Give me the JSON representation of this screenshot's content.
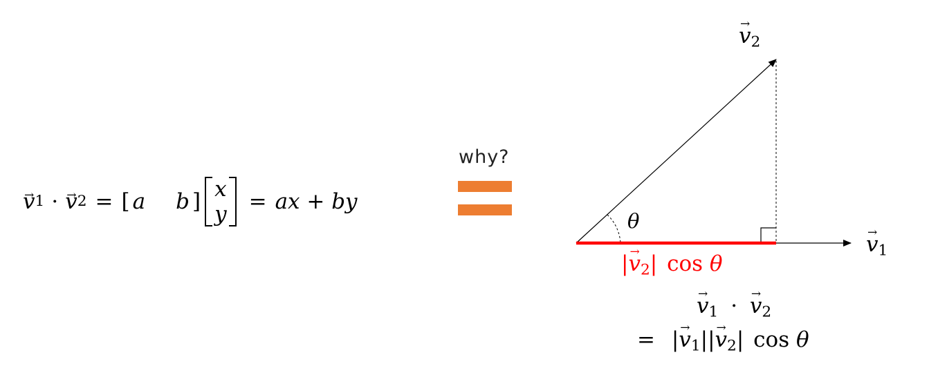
{
  "formula": {
    "v1": "v",
    "v1_sub": "1",
    "dot": "·",
    "v2": "v",
    "v2_sub": "2",
    "eq": "=",
    "row_bracket_open": "[",
    "a": "a",
    "b": "b",
    "row_bracket_close": "]",
    "x": "x",
    "y": "y",
    "rhs_eq": "=",
    "rhs": "ax + by"
  },
  "question": "why?",
  "equals_color": "#ed7d31",
  "diagram": {
    "label_v2": "v",
    "label_v2_sub": "2",
    "label_v1": "v",
    "label_v1_sub": "1",
    "theta": "θ",
    "projection_abs_open": "|",
    "projection_v": "v",
    "projection_sub": "2",
    "projection_abs_close": "|",
    "projection_cos": "cos",
    "projection_theta": "θ",
    "projection_color": "#ff0000"
  },
  "result": {
    "line1_v1": "v",
    "line1_v1_sub": "1",
    "line1_dot": "·",
    "line1_v2": "v",
    "line1_v2_sub": "2",
    "line2_eq": "=",
    "line2_abs1_open": "|",
    "line2_v1": "v",
    "line2_v1_sub": "1",
    "line2_abs1_close": "|",
    "line2_abs2_open": "|",
    "line2_v2": "v",
    "line2_v2_sub": "2",
    "line2_abs2_close": "|",
    "line2_cos": "cos",
    "line2_theta": "θ"
  }
}
